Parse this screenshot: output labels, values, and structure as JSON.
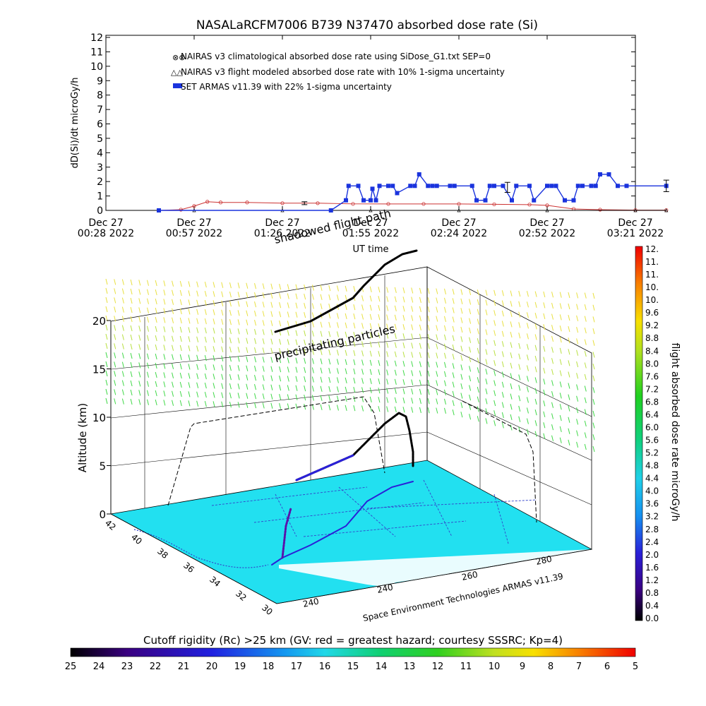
{
  "title": "NASALaRCFM7006   B739  N37470  absorbed dose rate (Si)",
  "chart_data": [
    {
      "type": "line",
      "ylabel": "dD(Si)/dt microGy/h",
      "xlabel": "UT time",
      "ylim": [
        0,
        12
      ],
      "y_ticks": [
        "0",
        "1",
        "2",
        "3",
        "4",
        "5",
        "6",
        "7",
        "8",
        "9",
        "10",
        "11",
        "12"
      ],
      "x_ticks": [
        {
          "day": "Dec 27",
          "time": "00:28 2022"
        },
        {
          "day": "Dec 27",
          "time": "00:57 2022"
        },
        {
          "day": "Dec 27",
          "time": "01:26 2022"
        },
        {
          "day": "Dec 27",
          "time": "01:55 2022"
        },
        {
          "day": "Dec 27",
          "time": "02:24 2022"
        },
        {
          "day": "Dec 27",
          "time": "02:52 2022"
        },
        {
          "day": "Dec 27",
          "time": "03:21 2022"
        }
      ],
      "legend": [
        "NAIRAS v3 climatological absorbed dose rate using SiDose_G1.txt SEP=0",
        "NAIRAS v3 flight modeled absorbed dose rate with 10% 1-sigma uncertainty",
        "SET ARMAS v11.39 with 22% 1-sigma uncertainty"
      ],
      "series": [
        {
          "name": "NAIRAS v3 climatological absorbed dose rate using SiDose_G1.txt SEP=0",
          "color": "#cc3333",
          "x": [
            0.6,
            0.85,
            1.0,
            1.15,
            1.3,
            1.6,
            2.0,
            2.4,
            2.8,
            3.2,
            3.6,
            4.0,
            4.4,
            4.8,
            5.0,
            5.3,
            5.6,
            6.0,
            6.35
          ],
          "y": [
            0.0,
            0.05,
            0.3,
            0.6,
            0.55,
            0.55,
            0.5,
            0.5,
            0.45,
            0.45,
            0.45,
            0.45,
            0.42,
            0.4,
            0.35,
            0.1,
            0.05,
            0.02,
            0.02
          ]
        },
        {
          "name": "NAIRAS v3 flight modeled absorbed dose rate with 10% 1-sigma uncertainty",
          "color": "#000000",
          "x": [
            0.6,
            1.0,
            2.0,
            3.0,
            4.0,
            5.0,
            6.0,
            6.35
          ],
          "y": [
            0.0,
            0.0,
            0.0,
            0.0,
            0.0,
            0.0,
            0.0,
            0.0
          ]
        },
        {
          "name": "SET ARMAS v11.39 with 22% 1-sigma uncertainty",
          "color": "#1a33dd",
          "x": [
            0.6,
            2.55,
            2.72,
            2.75,
            2.86,
            2.92,
            3.0,
            3.02,
            3.06,
            3.1,
            3.2,
            3.25,
            3.3,
            3.45,
            3.5,
            3.55,
            3.65,
            3.7,
            3.75,
            3.9,
            3.95,
            4.15,
            4.2,
            4.3,
            4.35,
            4.4,
            4.5,
            4.6,
            4.65,
            4.8,
            4.85,
            5.0,
            5.05,
            5.1,
            5.2,
            5.3,
            5.35,
            5.4,
            5.5,
            5.55,
            5.6,
            5.7,
            5.8,
            5.9,
            6.35
          ],
          "y": [
            0.0,
            0.0,
            0.7,
            1.7,
            1.7,
            0.7,
            0.7,
            1.5,
            0.7,
            1.7,
            1.7,
            1.7,
            1.2,
            1.7,
            1.7,
            2.5,
            1.7,
            1.7,
            1.7,
            1.7,
            1.7,
            1.7,
            0.7,
            0.7,
            1.7,
            1.7,
            1.7,
            0.7,
            1.7,
            1.7,
            0.7,
            1.7,
            1.7,
            1.7,
            0.7,
            0.7,
            1.7,
            1.7,
            1.7,
            1.7,
            2.5,
            2.5,
            1.7,
            1.7,
            1.7
          ]
        }
      ],
      "error_bars": [
        {
          "x": 2.25,
          "y": 0.5,
          "err": 0.1
        },
        {
          "x": 4.55,
          "y": 1.6,
          "err": 0.35
        },
        {
          "x": 6.35,
          "y": 1.7,
          "err": 0.4
        }
      ]
    },
    {
      "type": "scatter",
      "zlabel": "Altitude (km)",
      "z_ticks": [
        "0",
        "5",
        "10",
        "15",
        "20"
      ],
      "lat_ticks": [
        "42",
        "40",
        "38",
        "36",
        "34",
        "32",
        "30"
      ],
      "lon_ticks": [
        "240",
        "240",
        "260",
        "280"
      ],
      "annotations": [
        "shadowed flight path",
        "precipitating particles"
      ],
      "credit": "Space Environment Technologies ARMAS v11.39",
      "cbar_label": "flight absorbed dose rate microGy/h",
      "cbar_ticks": [
        "0.0",
        "0.4",
        "0.8",
        "1.2",
        "1.6",
        "2.0",
        "2.4",
        "2.8",
        "3.2",
        "3.6",
        "4.0",
        "4.4",
        "4.8",
        "5.2",
        "5.6",
        "6.0",
        "6.4",
        "6.8",
        "7.2",
        "7.6",
        "8.0",
        "8.4",
        "8.8",
        "9.2",
        "9.6",
        "10.",
        "10.",
        "11.",
        "11.",
        "12."
      ],
      "bottom_label": "Cutoff rigidity (Rc) >25 km (GV: red = greatest hazard; courtesy SSSRC; Kp=4)",
      "bottom_ticks": [
        "25",
        "24",
        "23",
        "22",
        "21",
        "20",
        "19",
        "18",
        "17",
        "16",
        "15",
        "14",
        "13",
        "12",
        "11",
        "10",
        "9",
        "8",
        "7",
        "6",
        "5"
      ]
    }
  ]
}
